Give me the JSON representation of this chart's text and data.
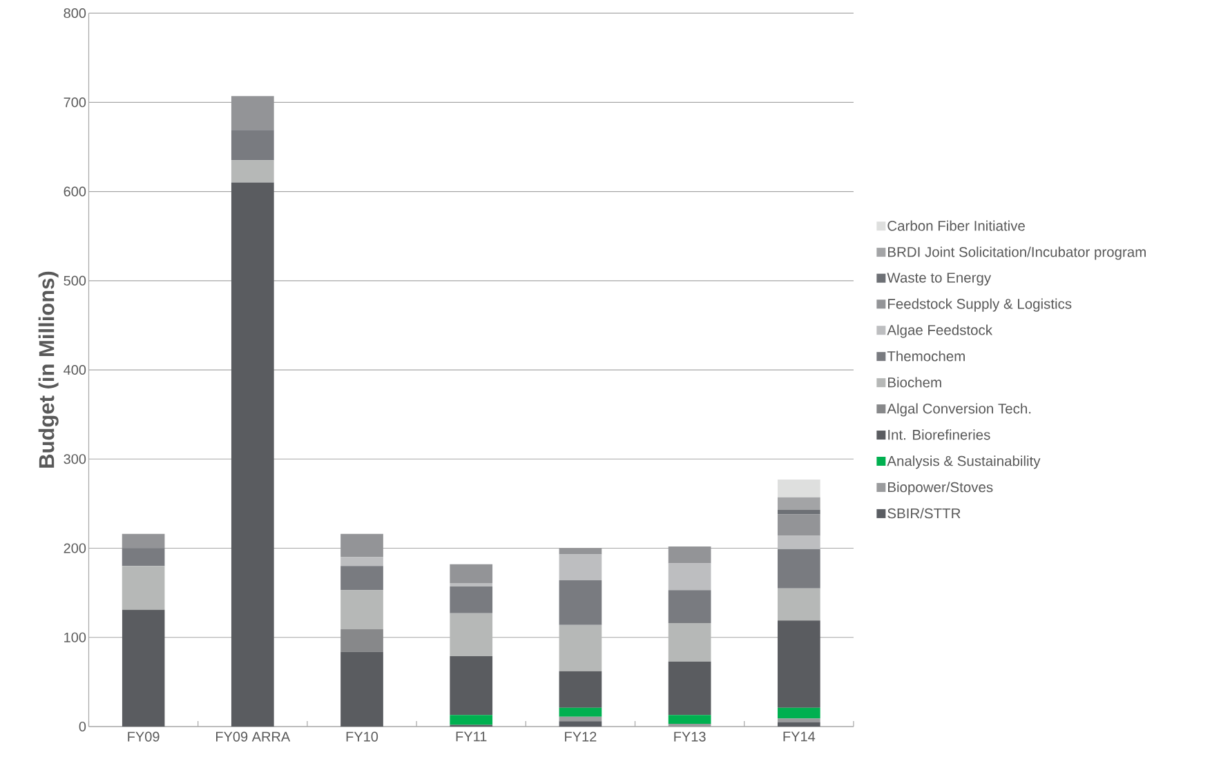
{
  "chart_data": {
    "type": "bar",
    "stacked": true,
    "ylabel": "Budget (in Millions)",
    "categories": [
      "FY09",
      "FY09 ARRA",
      "FY10",
      "FY11",
      "FY12",
      "FY13",
      "FY14"
    ],
    "ylim": [
      0,
      800
    ],
    "yticks": [
      0,
      100,
      200,
      300,
      400,
      500,
      600,
      700,
      800
    ],
    "grid": "y",
    "legend": "right",
    "series": [
      {
        "name": "SBIR/STTR",
        "color": "#5a5d62",
        "values": [
          null,
          null,
          null,
          2,
          6,
          null,
          5
        ]
      },
      {
        "name": "Biopower/Stoves",
        "color": "#9a9b9d",
        "values": [
          null,
          null,
          null,
          null,
          5,
          3,
          4
        ]
      },
      {
        "name": "Analysis & Sustainability",
        "color": "#00b050",
        "values": [
          null,
          null,
          null,
          11,
          10,
          10,
          12
        ]
      },
      {
        "name": "Int. Biorefineries",
        "color": "#5a5c60",
        "values": [
          131,
          610,
          84,
          66,
          41,
          60,
          98
        ]
      },
      {
        "name": "Algal Conversion Tech.",
        "color": "#87888a",
        "values": [
          null,
          null,
          25,
          null,
          null,
          null,
          null
        ]
      },
      {
        "name": "Biochem",
        "color": "#b6b8b7",
        "values": [
          49,
          25,
          44,
          48,
          52,
          43,
          36
        ]
      },
      {
        "name": "Themochem",
        "color": "#797b80",
        "values": [
          20,
          34,
          27,
          30,
          50,
          37,
          44
        ]
      },
      {
        "name": "Algae Feedstock",
        "color": "#bdbec0",
        "values": [
          null,
          null,
          10,
          4,
          29,
          30,
          15
        ]
      },
      {
        "name": "Feedstock Supply & Logistics",
        "color": "#939497",
        "values": [
          16,
          38,
          26,
          21,
          7,
          19,
          24
        ]
      },
      {
        "name": "Waste to Energy",
        "color": "#6d7075",
        "values": [
          null,
          null,
          null,
          null,
          null,
          null,
          5
        ]
      },
      {
        "name": "BRDI Joint Solicitation/Incubator program",
        "color": "#a3a4a6",
        "values": [
          null,
          null,
          null,
          null,
          null,
          null,
          14
        ]
      },
      {
        "name": "Carbon Fiber Initiative",
        "color": "#dedfde",
        "values": [
          null,
          null,
          null,
          null,
          null,
          null,
          20
        ]
      }
    ]
  }
}
